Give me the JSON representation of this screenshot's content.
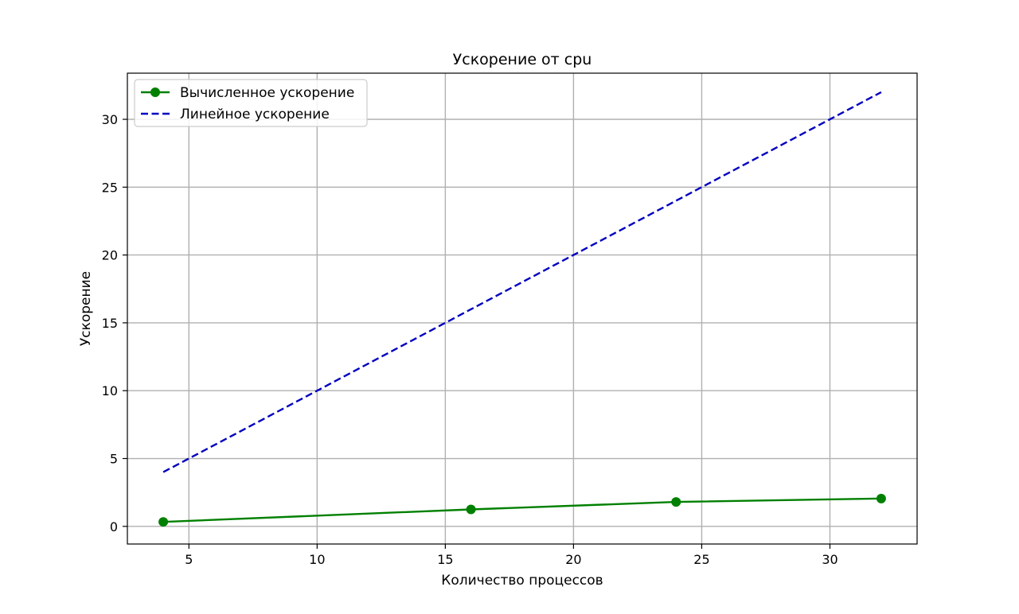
{
  "chart_data": {
    "type": "line",
    "title": "Ускорение от cpu",
    "xlabel": "Количество процессов",
    "ylabel": "Ускорение",
    "xlim": [
      2.6,
      33.4
    ],
    "ylim": [
      -1.3,
      33.4
    ],
    "xticks": [
      5,
      10,
      15,
      20,
      25,
      30
    ],
    "yticks": [
      0,
      5,
      10,
      15,
      20,
      25,
      30
    ],
    "grid": true,
    "legend_position": "top-left",
    "series": [
      {
        "name": "Вычисленное ускорение",
        "color": "#008000",
        "style": "solid",
        "marker": "circle",
        "x": [
          4,
          16,
          24,
          32
        ],
        "y": [
          0.33,
          1.25,
          1.8,
          2.05
        ]
      },
      {
        "name": "Линейное ускорение",
        "color": "#0000bf",
        "style": "dashed",
        "marker": "none",
        "x": [
          4,
          32
        ],
        "y": [
          4,
          32
        ]
      }
    ]
  }
}
